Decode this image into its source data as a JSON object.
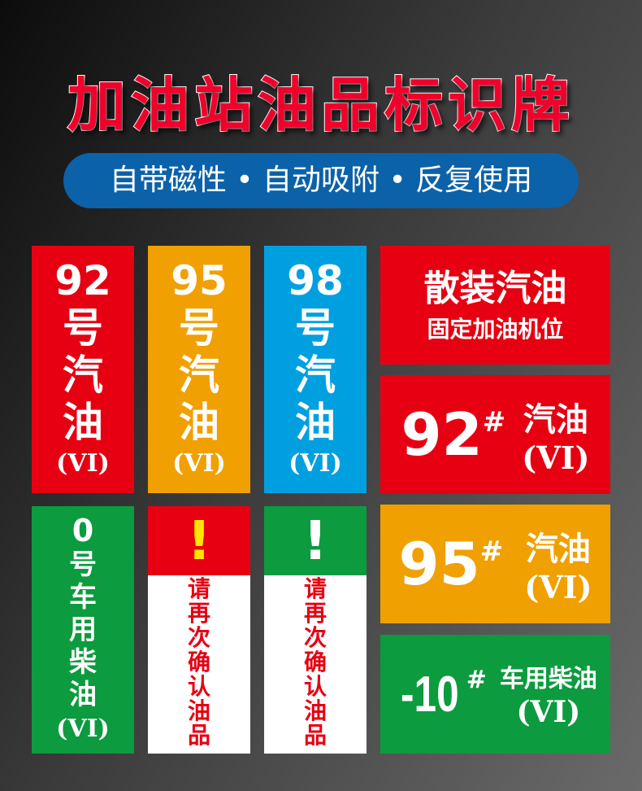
{
  "title": "加油站油品标识牌",
  "subtitle": "自带磁性 • 自动吸附 • 反复使用",
  "colors": {
    "red": "#e60012",
    "orange": "#f0a000",
    "blue": "#00a0e0",
    "green": "#0c9b3e",
    "pill": "#0b62a8"
  },
  "cards": {
    "c92": {
      "num": "92",
      "l1": "号",
      "l2": "汽",
      "l3": "油",
      "vi": "(VI)"
    },
    "c95": {
      "num": "95",
      "l1": "号",
      "l2": "汽",
      "l3": "油",
      "vi": "(VI)"
    },
    "c98": {
      "num": "98",
      "l1": "号",
      "l2": "汽",
      "l3": "油",
      "vi": "(VI)"
    },
    "bulk": {
      "line1": "散装汽油",
      "line2": "固定加油机位"
    },
    "w92": {
      "num": "92",
      "sup": "#",
      "name": "汽油",
      "vi": "(VI)"
    },
    "diesel0": {
      "num": "0",
      "text": "号车用柴油",
      "vi": "(VI)"
    },
    "warn1": {
      "icon": "!",
      "text": "请再次确认油品"
    },
    "warn2": {
      "icon": "!",
      "text": "请再次确认油品"
    },
    "w95": {
      "num": "95",
      "sup": "#",
      "name": "汽油",
      "vi": "(VI)"
    },
    "m10": {
      "num": "-10",
      "sup": "#",
      "name": "车用柴油",
      "vi": "(VI)"
    }
  }
}
